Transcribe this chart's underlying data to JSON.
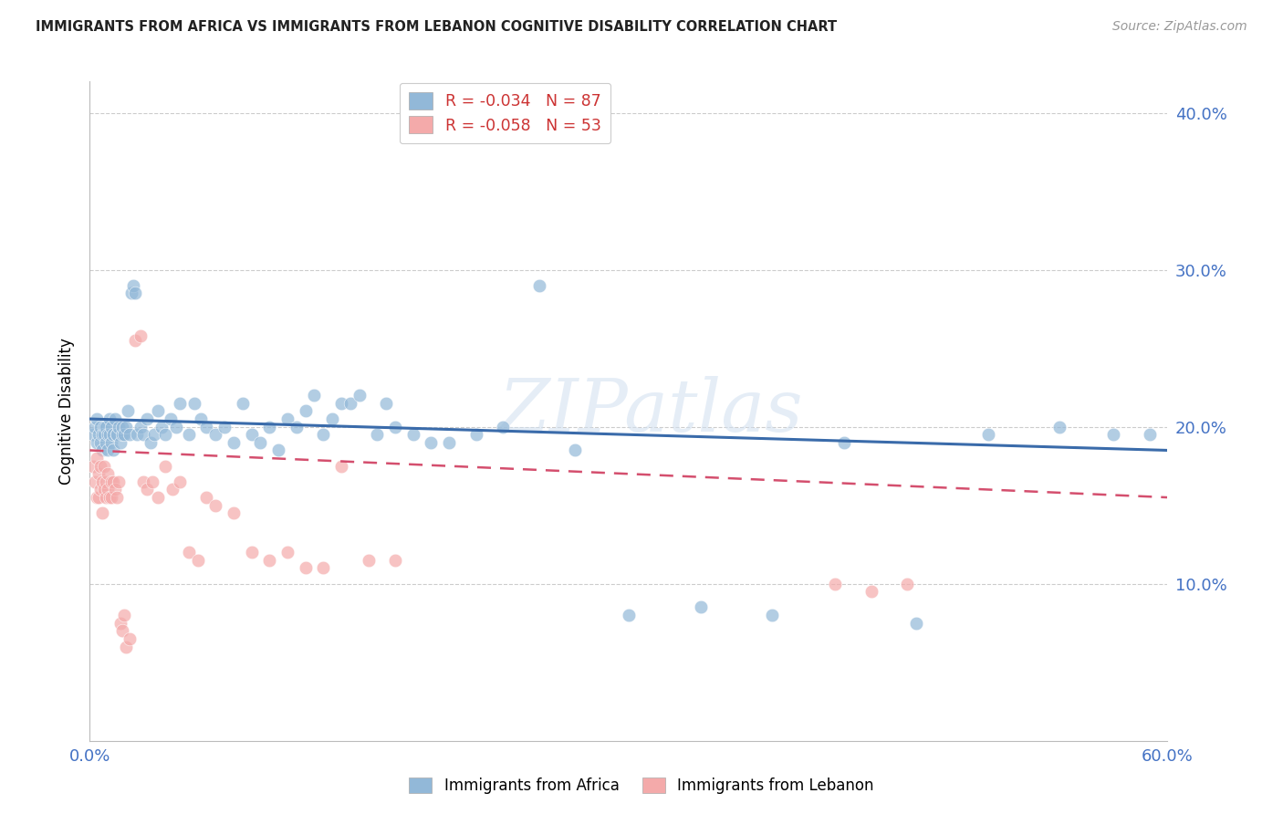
{
  "title": "IMMIGRANTS FROM AFRICA VS IMMIGRANTS FROM LEBANON COGNITIVE DISABILITY CORRELATION CHART",
  "source": "Source: ZipAtlas.com",
  "ylabel": "Cognitive Disability",
  "xlim": [
    0.0,
    0.6
  ],
  "ylim": [
    0.0,
    0.42
  ],
  "africa_color": "#92b8d8",
  "lebanon_color": "#f4aaaa",
  "africa_line_color": "#3a6baa",
  "lebanon_line_color": "#d44f6e",
  "grid_color": "#cccccc",
  "background_color": "#ffffff",
  "watermark": "ZIPatlas",
  "africa_R": -0.034,
  "africa_N": 87,
  "lebanon_R": -0.058,
  "lebanon_N": 53,
  "africa_x": [
    0.002,
    0.003,
    0.004,
    0.004,
    0.005,
    0.006,
    0.006,
    0.007,
    0.007,
    0.008,
    0.008,
    0.009,
    0.009,
    0.01,
    0.01,
    0.011,
    0.011,
    0.012,
    0.012,
    0.013,
    0.013,
    0.014,
    0.015,
    0.015,
    0.016,
    0.017,
    0.018,
    0.018,
    0.019,
    0.02,
    0.021,
    0.022,
    0.023,
    0.024,
    0.025,
    0.026,
    0.028,
    0.03,
    0.032,
    0.034,
    0.036,
    0.038,
    0.04,
    0.042,
    0.045,
    0.048,
    0.05,
    0.055,
    0.058,
    0.062,
    0.065,
    0.07,
    0.075,
    0.08,
    0.085,
    0.09,
    0.095,
    0.1,
    0.105,
    0.11,
    0.115,
    0.12,
    0.125,
    0.13,
    0.135,
    0.14,
    0.145,
    0.15,
    0.16,
    0.165,
    0.17,
    0.18,
    0.19,
    0.2,
    0.215,
    0.23,
    0.25,
    0.27,
    0.3,
    0.34,
    0.38,
    0.42,
    0.46,
    0.5,
    0.54,
    0.57,
    0.59
  ],
  "africa_y": [
    0.195,
    0.2,
    0.205,
    0.19,
    0.195,
    0.19,
    0.2,
    0.195,
    0.185,
    0.2,
    0.195,
    0.19,
    0.2,
    0.195,
    0.185,
    0.195,
    0.205,
    0.19,
    0.2,
    0.195,
    0.185,
    0.205,
    0.195,
    0.195,
    0.2,
    0.19,
    0.195,
    0.2,
    0.195,
    0.2,
    0.21,
    0.195,
    0.285,
    0.29,
    0.285,
    0.195,
    0.2,
    0.195,
    0.205,
    0.19,
    0.195,
    0.21,
    0.2,
    0.195,
    0.205,
    0.2,
    0.215,
    0.195,
    0.215,
    0.205,
    0.2,
    0.195,
    0.2,
    0.19,
    0.215,
    0.195,
    0.19,
    0.2,
    0.185,
    0.205,
    0.2,
    0.21,
    0.22,
    0.195,
    0.205,
    0.215,
    0.215,
    0.22,
    0.195,
    0.215,
    0.2,
    0.195,
    0.19,
    0.19,
    0.195,
    0.2,
    0.29,
    0.185,
    0.08,
    0.085,
    0.08,
    0.19,
    0.075,
    0.195,
    0.2,
    0.195,
    0.195
  ],
  "lebanon_x": [
    0.002,
    0.003,
    0.004,
    0.004,
    0.005,
    0.005,
    0.006,
    0.006,
    0.007,
    0.007,
    0.008,
    0.008,
    0.009,
    0.009,
    0.01,
    0.01,
    0.011,
    0.012,
    0.012,
    0.013,
    0.014,
    0.015,
    0.016,
    0.017,
    0.018,
    0.019,
    0.02,
    0.022,
    0.025,
    0.028,
    0.03,
    0.032,
    0.035,
    0.038,
    0.042,
    0.046,
    0.05,
    0.055,
    0.06,
    0.065,
    0.07,
    0.08,
    0.09,
    0.1,
    0.11,
    0.12,
    0.13,
    0.14,
    0.155,
    0.17,
    0.415,
    0.435,
    0.455
  ],
  "lebanon_y": [
    0.175,
    0.165,
    0.18,
    0.155,
    0.17,
    0.155,
    0.16,
    0.175,
    0.165,
    0.145,
    0.16,
    0.175,
    0.165,
    0.155,
    0.17,
    0.16,
    0.155,
    0.165,
    0.155,
    0.165,
    0.16,
    0.155,
    0.165,
    0.075,
    0.07,
    0.08,
    0.06,
    0.065,
    0.255,
    0.258,
    0.165,
    0.16,
    0.165,
    0.155,
    0.175,
    0.16,
    0.165,
    0.12,
    0.115,
    0.155,
    0.15,
    0.145,
    0.12,
    0.115,
    0.12,
    0.11,
    0.11,
    0.175,
    0.115,
    0.115,
    0.1,
    0.095,
    0.1
  ]
}
